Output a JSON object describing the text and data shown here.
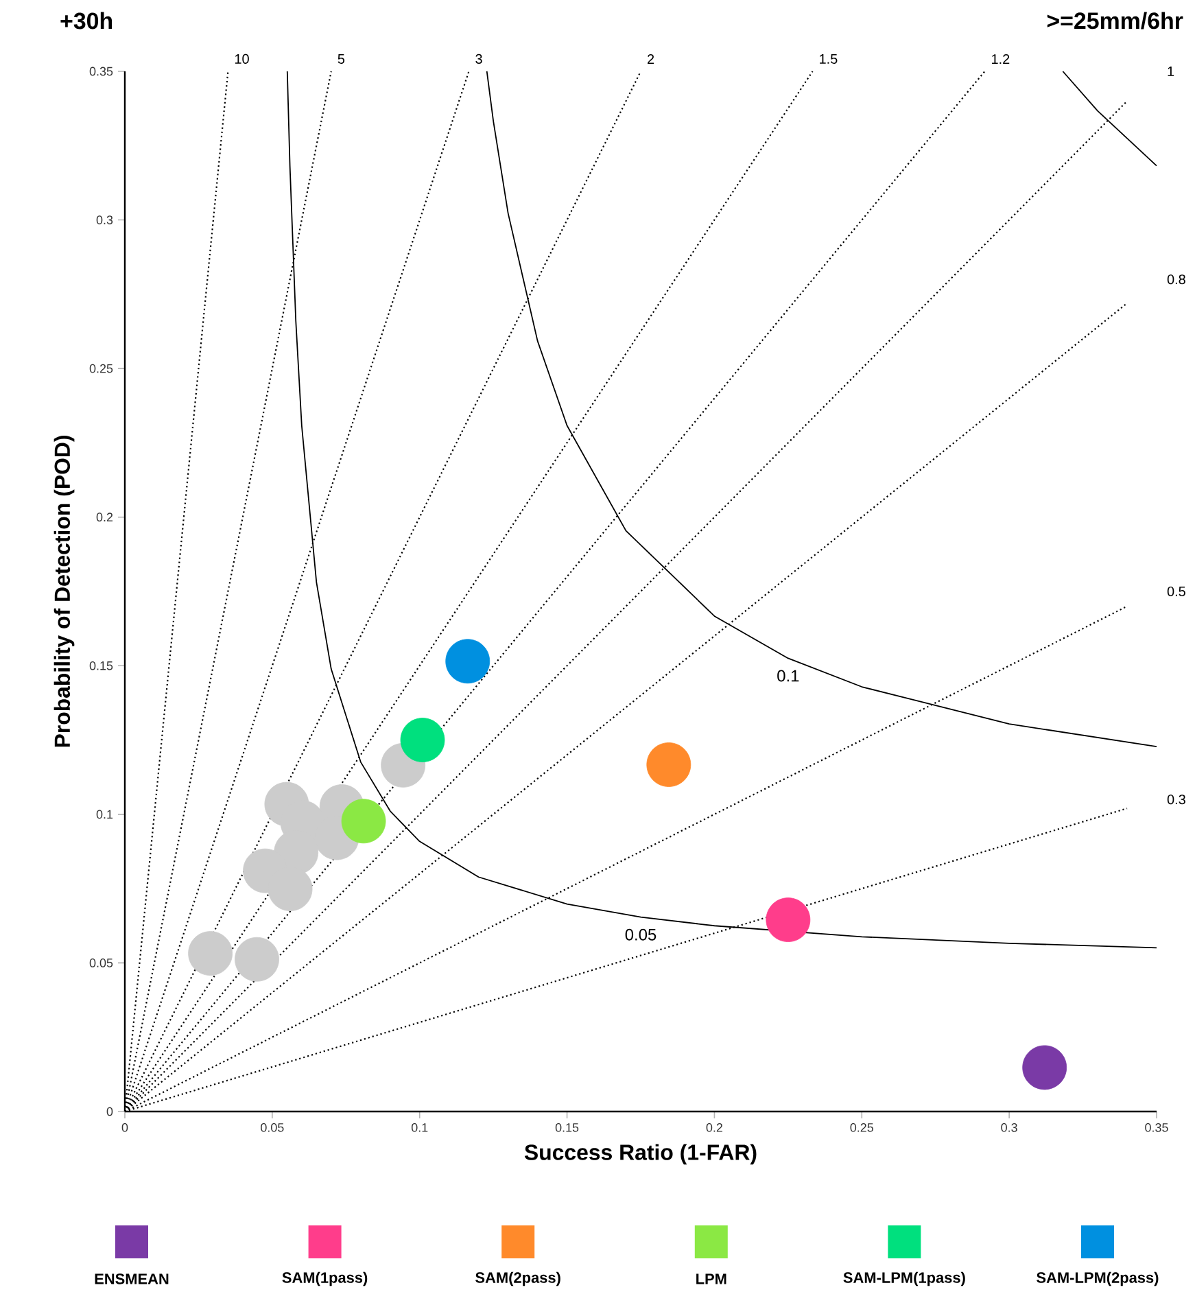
{
  "chart_data": {
    "type": "scatter",
    "title": "+30h",
    "subtitle": ">=25mm/6hr",
    "xlabel": "Success Ratio (1-FAR)",
    "ylabel": "Probability of Detection (POD)",
    "xlim": [
      0,
      0.35
    ],
    "ylim": [
      0,
      0.35
    ],
    "xticks": [
      0,
      0.05,
      0.1,
      0.15,
      0.2,
      0.25,
      0.3,
      0.35
    ],
    "yticks": [
      0,
      0.05,
      0.1,
      0.15,
      0.2,
      0.25,
      0.3,
      0.35
    ],
    "marker": "circle",
    "legend": "bottom",
    "grid": false,
    "annotations": [
      {
        "text": "10",
        "x": 0.035,
        "y": 0.35
      },
      {
        "text": "5",
        "x": 0.07,
        "y": 0.35
      },
      {
        "text": "3",
        "x": 0.1167,
        "y": 0.35
      },
      {
        "text": "2",
        "x": 0.175,
        "y": 0.35
      },
      {
        "text": "1.5",
        "x": 0.2333,
        "y": 0.35
      },
      {
        "text": "1.2",
        "x": 0.2917,
        "y": 0.35
      },
      "1",
      "0.8",
      "0.5",
      "0.3",
      {
        "text": "0.1",
        "x": 0.225,
        "y": 0.1525
      },
      {
        "text": "0.05",
        "x": 0.175,
        "y": 0.0654
      }
    ],
    "series": [
      {
        "type": "line",
        "line_style": "dotted",
        "marker": "none",
        "color": "#000000",
        "x": [
          0,
          0.035
        ],
        "values": [
          0,
          0.35
        ]
      },
      {
        "type": "line",
        "line_style": "dotted",
        "marker": "none",
        "color": "#000000",
        "x": [
          0,
          0.07
        ],
        "values": [
          0,
          0.35
        ]
      },
      {
        "type": "line",
        "line_style": "dotted",
        "marker": "none",
        "color": "#000000",
        "x": [
          0,
          0.1167
        ],
        "values": [
          0,
          0.35
        ]
      },
      {
        "type": "line",
        "line_style": "dotted",
        "marker": "none",
        "color": "#000000",
        "x": [
          0,
          0.175
        ],
        "values": [
          0,
          0.35
        ]
      },
      {
        "type": "line",
        "line_style": "dotted",
        "marker": "none",
        "color": "#000000",
        "x": [
          0,
          0.2333
        ],
        "values": [
          0,
          0.35
        ]
      },
      {
        "type": "line",
        "line_style": "dotted",
        "marker": "none",
        "color": "#000000",
        "x": [
          0,
          0.2917
        ],
        "values": [
          0,
          0.35
        ]
      },
      {
        "type": "line",
        "line_style": "dotted",
        "marker": "none",
        "color": "#000000",
        "x": [
          0,
          0.34
        ],
        "values": [
          0,
          0.34
        ]
      },
      {
        "type": "line",
        "line_style": "dotted",
        "marker": "none",
        "color": "#000000",
        "x": [
          0,
          0.34
        ],
        "values": [
          0,
          0.272
        ]
      },
      {
        "type": "line",
        "line_style": "dotted",
        "marker": "none",
        "color": "#000000",
        "x": [
          0,
          0.34
        ],
        "values": [
          0,
          0.17
        ]
      },
      {
        "type": "line",
        "line_style": "dotted",
        "marker": "none",
        "color": "#000000",
        "x": [
          0,
          0.34
        ],
        "values": [
          0,
          0.102
        ]
      },
      {
        "type": "line",
        "line_style": "solid",
        "marker": "none",
        "color": "#000000",
        "x": [
          0.0551,
          0.056,
          0.058,
          0.06,
          0.065,
          0.07,
          0.08,
          0.09,
          0.1,
          0.12,
          0.15,
          0.175,
          0.2,
          0.25,
          0.3,
          0.35
        ],
        "values": [
          0.35,
          0.318,
          0.266,
          0.2308,
          0.1781,
          0.1489,
          0.1176,
          0.1011,
          0.0909,
          0.0789,
          0.0698,
          0.0654,
          0.0625,
          0.0588,
          0.0566,
          0.0551
        ]
      },
      {
        "type": "line",
        "line_style": "solid",
        "marker": "none",
        "color": "#000000",
        "x": [
          0.1228,
          0.125,
          0.13,
          0.14,
          0.15,
          0.17,
          0.2,
          0.225,
          0.25,
          0.3,
          0.35
        ],
        "values": [
          0.35,
          0.3333,
          0.3023,
          0.2593,
          0.2308,
          0.1954,
          0.1667,
          0.1525,
          0.1429,
          0.1304,
          0.1228
        ]
      },
      {
        "type": "line",
        "line_style": "solid",
        "marker": "none",
        "color": "#000000",
        "x": [
          0.3182,
          0.33,
          0.35
        ],
        "values": [
          0.35,
          0.3367,
          0.3182
        ]
      },
      {
        "color": "#cccccc",
        "x": [
          0.0944,
          0.0549,
          0.0736,
          0.0603,
          0.0719,
          0.0581,
          0.0476,
          0.0561,
          0.029,
          0.0448
        ],
        "values": [
          0.1165,
          0.1034,
          0.1026,
          0.0972,
          0.0921,
          0.0872,
          0.081,
          0.0749,
          0.0532,
          0.0512
        ]
      },
      {
        "name": "ENSMEAN",
        "color": "#7a3aa6",
        "x": [
          0.312
        ],
        "values": [
          0.0148
        ]
      },
      {
        "name": "SAM(1pass)",
        "color": "#ff3d8b",
        "x": [
          0.225
        ],
        "values": [
          0.0645
        ]
      },
      {
        "name": "SAM(2pass)",
        "color": "#ff8a2b",
        "x": [
          0.1845
        ],
        "values": [
          0.1167
        ]
      },
      {
        "name": "LPM",
        "color": "#8be844",
        "x": [
          0.081
        ],
        "values": [
          0.0977
        ]
      },
      {
        "name": "SAM-LPM(1pass)",
        "color": "#00e07e",
        "x": [
          0.101
        ],
        "values": [
          0.125
        ]
      },
      {
        "name": "SAM-LPM(2pass)",
        "color": "#0090e0",
        "x": [
          0.1163
        ],
        "values": [
          0.1515
        ]
      }
    ]
  }
}
